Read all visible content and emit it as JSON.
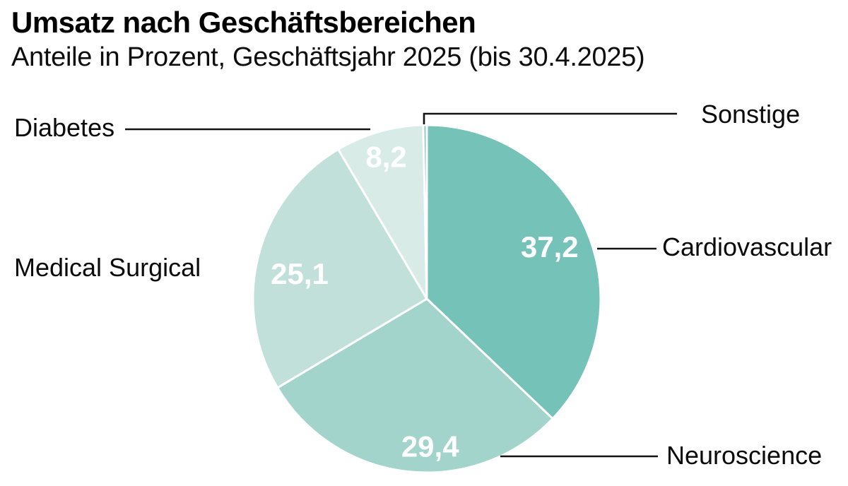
{
  "header": {
    "title": "Umsatz nach Geschäftsbereichen",
    "subtitle": "Anteile in Prozent, Geschäftsjahr 2025 (bis 30.4.2025)"
  },
  "chart_data": {
    "type": "pie",
    "title": "Umsatz nach Geschäftsbereichen",
    "subtitle": "Anteile in Prozent, Geschäftsjahr 2025 (bis 30.4.2025)",
    "unit": "percent",
    "decimal_separator": ",",
    "start_angle_deg": 0,
    "direction": "clockwise",
    "border_color": "#ffffff",
    "text_color": "#0b0b0b",
    "value_label_color": "#ffffff",
    "slices": [
      {
        "label": "Cardiovascular",
        "value": 37.2,
        "value_label": "37,2",
        "color": "#75c2b9",
        "callout_side": "right"
      },
      {
        "label": "Neuroscience",
        "value": 29.4,
        "value_label": "29,4",
        "color": "#a2d4cc",
        "callout_side": "right"
      },
      {
        "label": "Medical Surgical",
        "value": 25.1,
        "value_label": "25,1",
        "color": "#c2e0da",
        "callout_side": "left"
      },
      {
        "label": "Diabetes",
        "value": 8.2,
        "value_label": "8,2",
        "color": "#d8ebe7",
        "callout_side": "left"
      },
      {
        "label": "Sonstige",
        "value": null,
        "value_label": null,
        "color": "#8ccac2",
        "callout_side": "right"
      }
    ]
  }
}
